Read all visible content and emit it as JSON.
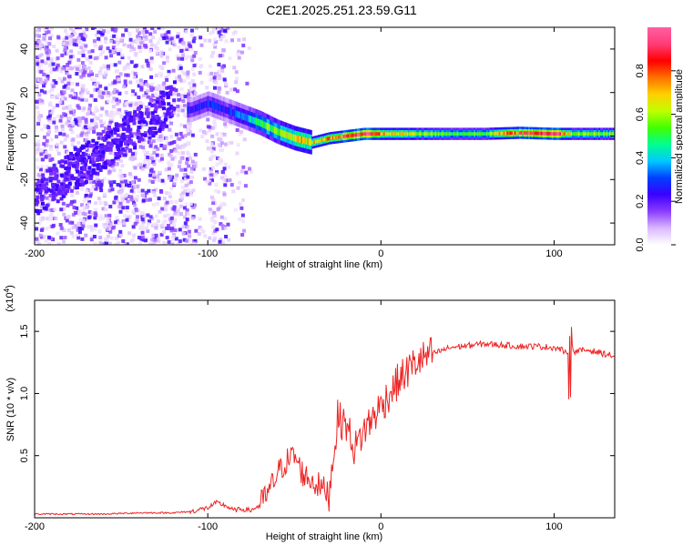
{
  "figure_title": "C2E1.2025.251.23.59.G11",
  "chart_data": [
    {
      "type": "heatmap",
      "title": "C2E1.2025.251.23.59.G11",
      "xlabel": "Height of straight line (km)",
      "ylabel": "Frequency (Hz)",
      "xlim": [
        -200,
        135
      ],
      "ylim": [
        -50,
        50
      ],
      "x_ticks": [
        -200,
        -100,
        0,
        100
      ],
      "y_ticks": [
        -40,
        -20,
        0,
        20,
        40
      ],
      "colorbar": {
        "label": "Normalized spectral amplitude",
        "range": [
          0,
          1
        ],
        "ticks": [
          0.0,
          0.2,
          0.4,
          0.6,
          0.8
        ],
        "colormap": [
          "#ffffff",
          "#d9b8ff",
          "#8a3cff",
          "#3a00ff",
          "#0040ff",
          "#00c8ff",
          "#00ff90",
          "#40ff00",
          "#c0ff00",
          "#ffd000",
          "#ff7000",
          "#ff0000",
          "#ff3c78",
          "#ff5fa0"
        ]
      },
      "signal_ridge": {
        "x": [
          -110,
          -100,
          -90,
          -80,
          -70,
          -60,
          -50,
          -40,
          -30,
          -20,
          -10,
          0,
          20,
          40,
          60,
          80,
          100,
          110,
          135
        ],
        "frequency": [
          12,
          15,
          12,
          9,
          6,
          2,
          -1,
          -3,
          -1,
          0,
          1,
          1,
          1,
          1,
          1,
          1.5,
          1,
          1,
          1
        ],
        "amplitude": [
          0.25,
          0.3,
          0.25,
          0.35,
          0.5,
          0.6,
          0.65,
          0.7,
          0.75,
          0.85,
          0.95,
          0.75,
          0.6,
          0.5,
          0.55,
          0.85,
          0.95,
          0.6,
          0.55
        ]
      },
      "noise_region_x": [
        -200,
        -80
      ]
    },
    {
      "type": "line",
      "xlabel": "Height of straight line (km)",
      "ylabel": "SNR (10 * v/v)",
      "multiplier_label": "(x10",
      "multiplier_exponent": "4",
      "multiplier_close": ")",
      "xlim": [
        -200,
        135
      ],
      "ylim": [
        0,
        1.75
      ],
      "x_ticks": [
        -200,
        -100,
        0,
        100
      ],
      "y_ticks": [
        0.5,
        1.0,
        1.5
      ],
      "y_tick_labels": [
        "0.5",
        "1.0",
        "1.5"
      ],
      "line_color": "#ee2222",
      "series": [
        {
          "x": [
            -200,
            -180,
            -160,
            -140,
            -120,
            -110,
            -100,
            -95,
            -90,
            -85,
            -80,
            -75,
            -70,
            -65,
            -60,
            -55,
            -50,
            -45,
            -40,
            -35,
            -30,
            -25,
            -20,
            -15,
            -10,
            -5,
            0,
            10,
            20,
            30,
            40,
            60,
            80,
            90,
            100,
            105,
            108,
            110,
            112,
            120,
            135
          ],
          "values": [
            0.03,
            0.03,
            0.03,
            0.04,
            0.04,
            0.05,
            0.08,
            0.12,
            0.1,
            0.06,
            0.07,
            0.06,
            0.1,
            0.2,
            0.35,
            0.45,
            0.5,
            0.35,
            0.3,
            0.25,
            0.2,
            0.8,
            0.75,
            0.55,
            0.7,
            0.8,
            0.9,
            1.1,
            1.25,
            1.32,
            1.37,
            1.4,
            1.38,
            1.38,
            1.37,
            1.35,
            1.3,
            1.38,
            1.34,
            1.35,
            1.3
          ]
        }
      ]
    }
  ]
}
